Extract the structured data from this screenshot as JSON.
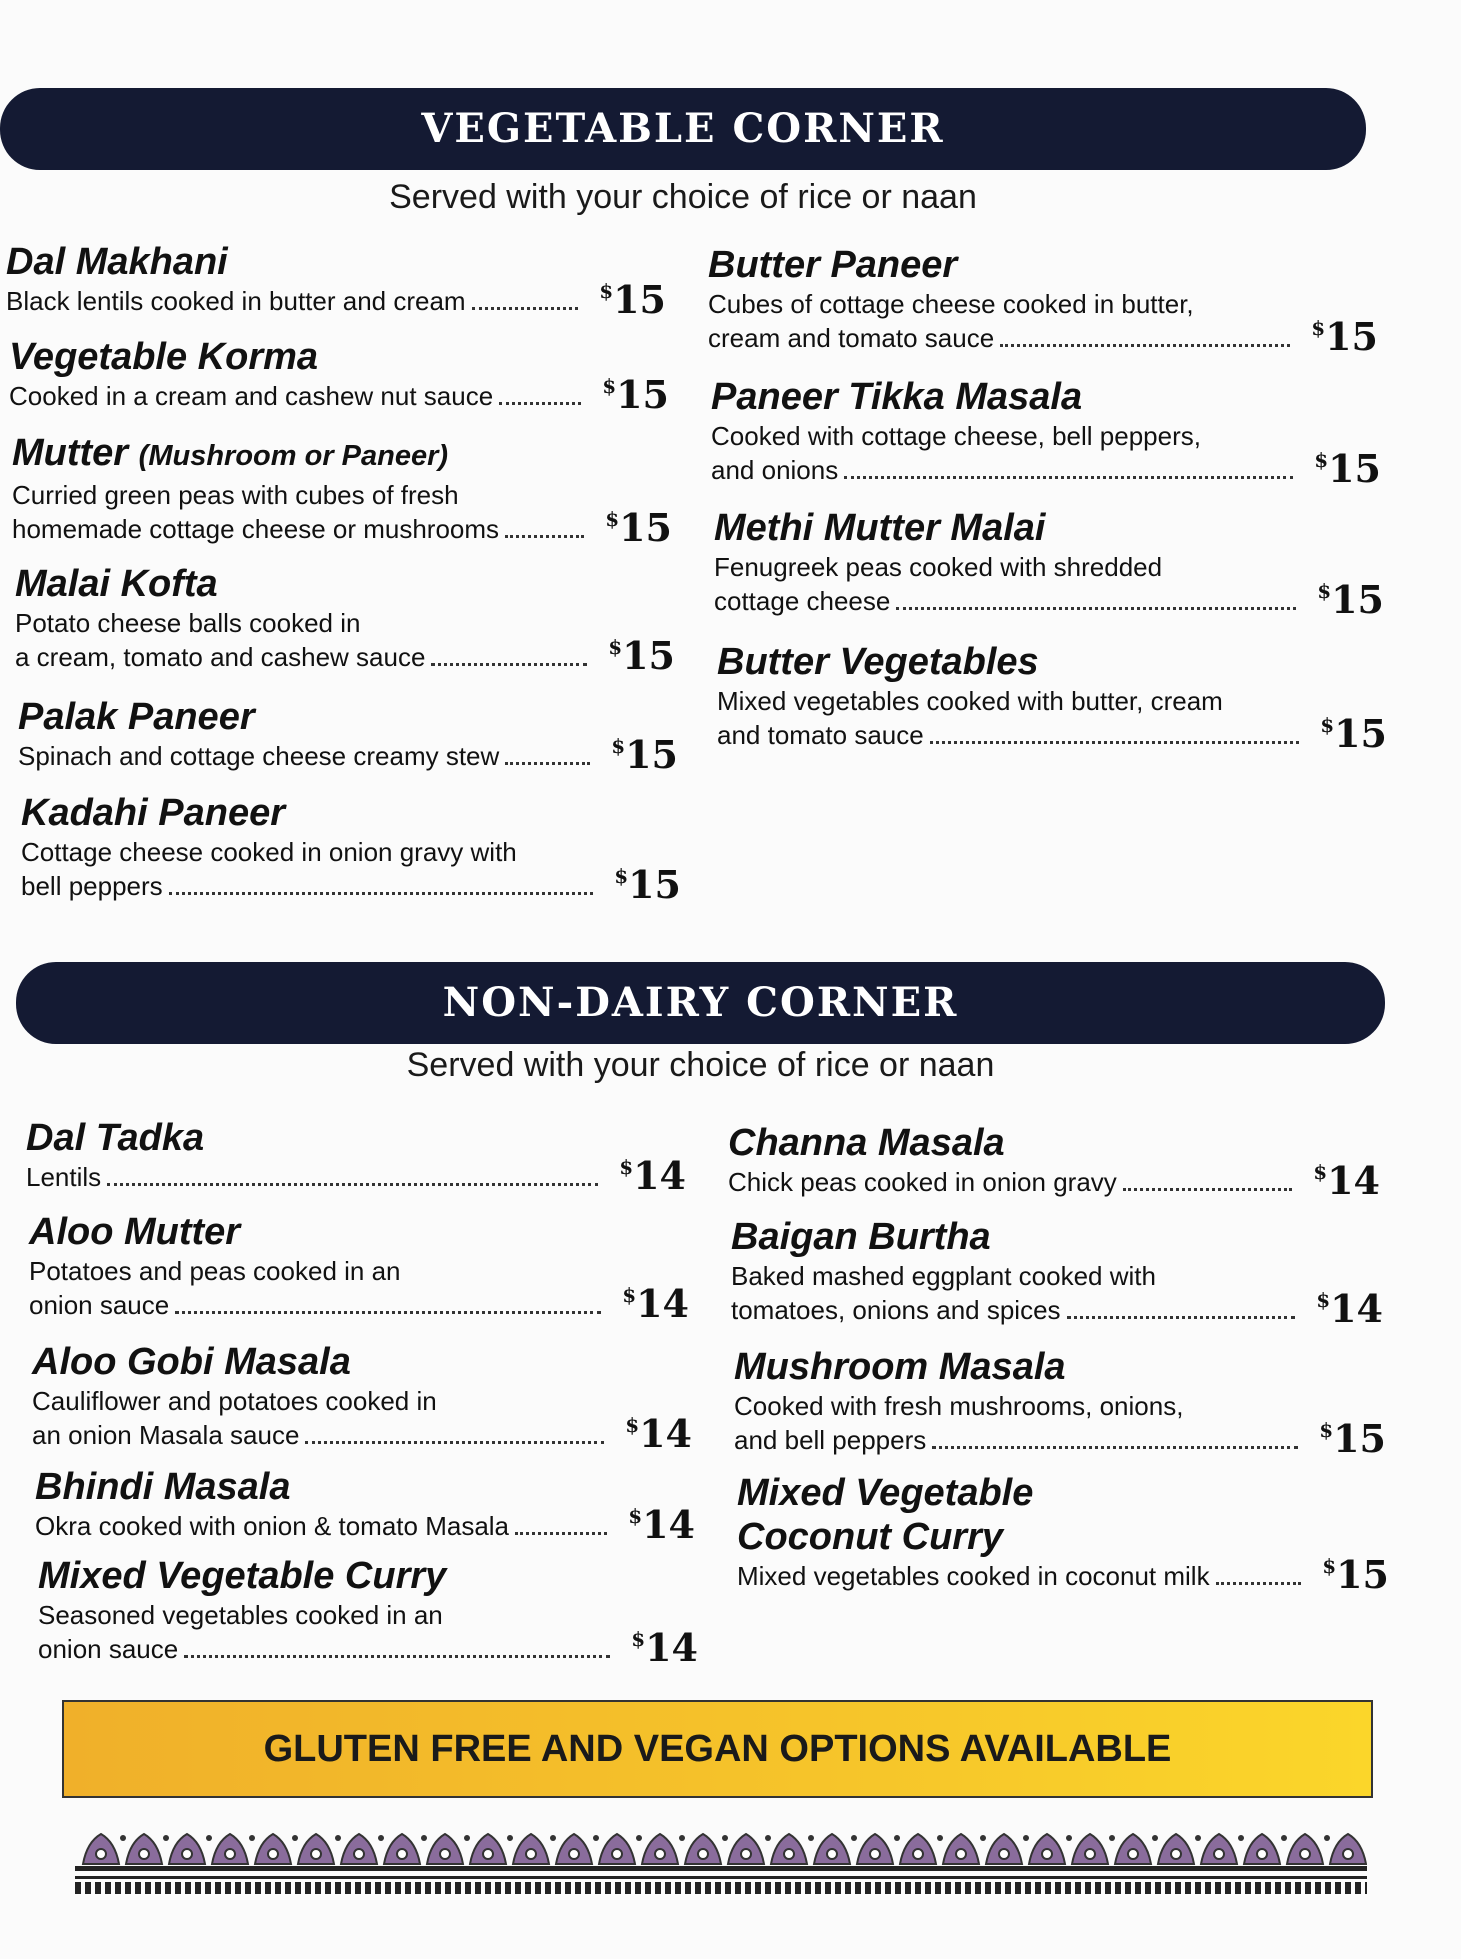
{
  "sections": [
    {
      "title": "VEGETABLE CORNER",
      "subtitle": "Served with your choice of rice or naan",
      "left": [
        {
          "name": "Dal Makhani",
          "desc": [
            "Black lentils cooked in butter and cream"
          ],
          "price": "15"
        },
        {
          "name": "Vegetable Korma",
          "desc": [
            "Cooked in a cream and cashew nut sauce"
          ],
          "price": "15"
        },
        {
          "name": "Mutter",
          "name_note": "(Mushroom or Paneer)",
          "desc": [
            "Curried green peas with cubes of fresh",
            "homemade cottage cheese or mushrooms"
          ],
          "price": "15"
        },
        {
          "name": "Malai Kofta",
          "desc": [
            "Potato cheese balls cooked in",
            "a cream, tomato and cashew sauce"
          ],
          "price": "15"
        },
        {
          "name": "Palak Paneer",
          "desc": [
            "Spinach and cottage cheese creamy stew"
          ],
          "price": "15"
        },
        {
          "name": "Kadahi Paneer",
          "desc": [
            "Cottage cheese cooked in onion gravy with",
            "bell peppers"
          ],
          "price": "15"
        }
      ],
      "right": [
        {
          "name": "Butter Paneer",
          "desc": [
            "Cubes of cottage cheese cooked in butter,",
            "cream and tomato sauce"
          ],
          "price": "15"
        },
        {
          "name": "Paneer Tikka Masala",
          "desc": [
            "Cooked with cottage cheese, bell peppers,",
            "and onions"
          ],
          "price": "15"
        },
        {
          "name": "Methi Mutter Malai",
          "desc": [
            "Fenugreek peas cooked with shredded",
            "cottage cheese"
          ],
          "price": "15"
        },
        {
          "name": "Butter Vegetables",
          "desc": [
            "Mixed vegetables cooked with butter, cream",
            "and tomato sauce"
          ],
          "price": "15"
        }
      ]
    },
    {
      "title": "NON-DAIRY CORNER",
      "subtitle": "Served with your choice of rice or naan",
      "left": [
        {
          "name": "Dal Tadka",
          "desc": [
            "Lentils"
          ],
          "price": "14"
        },
        {
          "name": "Aloo Mutter",
          "desc": [
            "Potatoes and peas cooked in an",
            "onion sauce"
          ],
          "price": "14"
        },
        {
          "name": "Aloo Gobi Masala",
          "desc": [
            "Cauliflower and potatoes cooked in",
            "an onion Masala sauce"
          ],
          "price": "14"
        },
        {
          "name": "Bhindi Masala",
          "desc": [
            "Okra cooked with onion & tomato Masala"
          ],
          "price": "14"
        },
        {
          "name": "Mixed Vegetable Curry",
          "desc": [
            "Seasoned vegetables cooked in an",
            "onion sauce"
          ],
          "price": "14"
        }
      ],
      "right": [
        {
          "name": "Channa Masala",
          "desc": [
            "Chick peas cooked in onion gravy"
          ],
          "price": "14"
        },
        {
          "name": "Baigan Burtha",
          "desc": [
            "Baked mashed eggplant cooked with",
            "tomatoes, onions and spices"
          ],
          "price": "14"
        },
        {
          "name": "Mushroom Masala",
          "desc": [
            "Cooked with fresh mushrooms, onions,",
            "and bell peppers"
          ],
          "price": "15"
        },
        {
          "name": "Mixed Vegetable",
          "name_line2": "Coconut Curry",
          "desc": [
            "Mixed vegetables cooked in coconut milk"
          ],
          "price": "15"
        }
      ]
    }
  ],
  "currency": "$",
  "banner": "GLUTEN FREE AND VEGAN OPTIONS AVAILABLE",
  "colors": {
    "header_bar": "#141a33",
    "banner": "#f6c52a",
    "border_ornament": "#7a5a8c"
  }
}
